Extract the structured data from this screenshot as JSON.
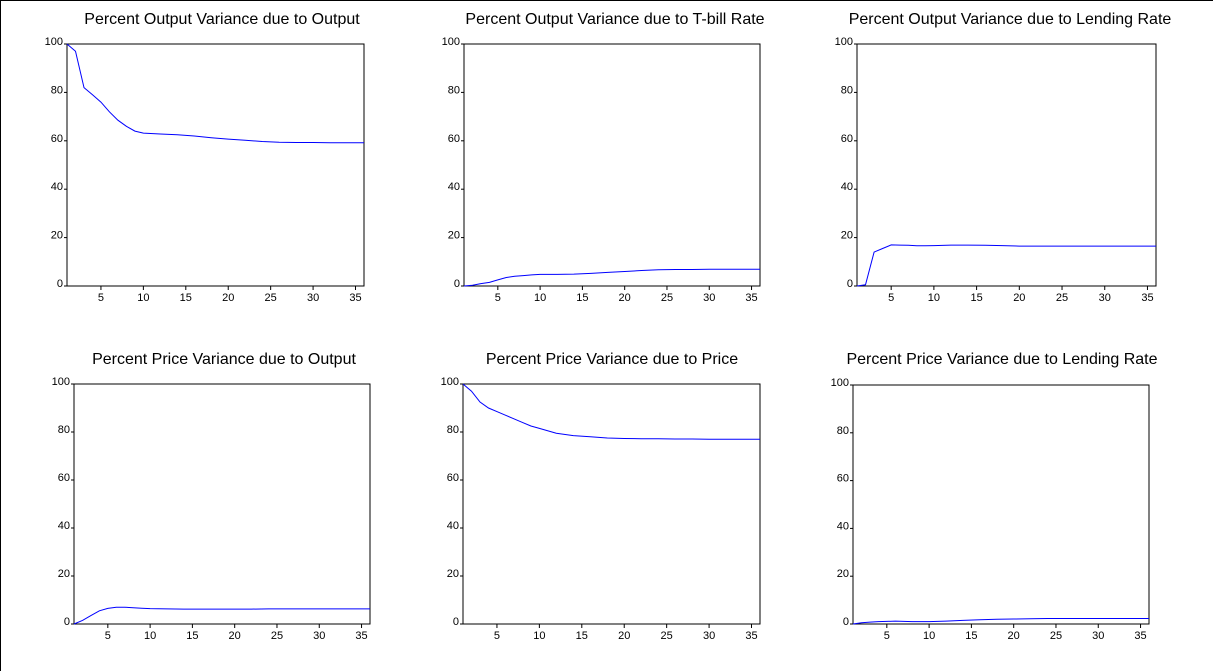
{
  "chart_data": [
    {
      "type": "line",
      "title": "Percent Output Variance due to Output",
      "xlim": [
        1,
        36
      ],
      "ylim": [
        0,
        100
      ],
      "xticks": [
        5,
        10,
        15,
        20,
        25,
        30,
        35
      ],
      "yticks": [
        0,
        20,
        40,
        60,
        80,
        100
      ],
      "series": [
        {
          "color": "#0000ff",
          "x": [
            1,
            2,
            3,
            4,
            5,
            6,
            7,
            8,
            9,
            10,
            12,
            14,
            16,
            18,
            20,
            22,
            24,
            26,
            28,
            30,
            32,
            34,
            36
          ],
          "y": [
            100,
            97,
            82,
            79,
            76,
            72,
            68.5,
            66,
            64,
            63.2,
            62.8,
            62.5,
            62,
            61.3,
            60.7,
            60.2,
            59.7,
            59.4,
            59.3,
            59.3,
            59.2,
            59.2,
            59.2
          ]
        }
      ]
    },
    {
      "type": "line",
      "title": "Percent Output Variance due to T-bill Rate",
      "xlim": [
        1,
        36
      ],
      "ylim": [
        0,
        100
      ],
      "xticks": [
        5,
        10,
        15,
        20,
        25,
        30,
        35
      ],
      "yticks": [
        0,
        20,
        40,
        60,
        80,
        100
      ],
      "series": [
        {
          "color": "#0000ff",
          "x": [
            1,
            2,
            3,
            4,
            5,
            6,
            7,
            8,
            9,
            10,
            12,
            14,
            16,
            18,
            20,
            22,
            24,
            26,
            28,
            30,
            32,
            34,
            36
          ],
          "y": [
            0,
            0.3,
            1,
            1.5,
            2.5,
            3.5,
            4,
            4.3,
            4.6,
            4.8,
            4.8,
            4.9,
            5.2,
            5.6,
            6,
            6.4,
            6.7,
            6.8,
            6.8,
            6.9,
            6.9,
            6.9,
            6.9
          ]
        }
      ]
    },
    {
      "type": "line",
      "title": "Percent Output Variance due to Lending Rate",
      "xlim": [
        1,
        36
      ],
      "ylim": [
        0,
        100
      ],
      "xticks": [
        5,
        10,
        15,
        20,
        25,
        30,
        35
      ],
      "yticks": [
        0,
        20,
        40,
        60,
        80,
        100
      ],
      "series": [
        {
          "color": "#0000ff",
          "x": [
            1,
            2,
            3,
            4,
            5,
            6,
            7,
            8,
            9,
            10,
            12,
            14,
            16,
            18,
            20,
            22,
            24,
            26,
            28,
            30,
            32,
            34,
            36
          ],
          "y": [
            0,
            0.5,
            14,
            15.5,
            17,
            16.9,
            16.8,
            16.6,
            16.6,
            16.7,
            16.9,
            16.9,
            16.8,
            16.7,
            16.5,
            16.5,
            16.5,
            16.5,
            16.5,
            16.5,
            16.5,
            16.5,
            16.5
          ]
        }
      ]
    },
    {
      "type": "line",
      "title": "Percent Price Variance due to Output",
      "xlim": [
        1,
        36
      ],
      "ylim": [
        0,
        100
      ],
      "xticks": [
        5,
        10,
        15,
        20,
        25,
        30,
        35
      ],
      "yticks": [
        0,
        20,
        40,
        60,
        80,
        100
      ],
      "series": [
        {
          "color": "#0000ff",
          "x": [
            1,
            2,
            3,
            4,
            5,
            6,
            7,
            8,
            9,
            10,
            12,
            14,
            16,
            18,
            20,
            22,
            24,
            26,
            28,
            30,
            32,
            34,
            36
          ],
          "y": [
            0,
            1.5,
            3.5,
            5.5,
            6.5,
            7,
            7,
            6.8,
            6.6,
            6.4,
            6.3,
            6.2,
            6.2,
            6.2,
            6.2,
            6.2,
            6.3,
            6.3,
            6.3,
            6.3,
            6.3,
            6.3,
            6.3
          ]
        }
      ]
    },
    {
      "type": "line",
      "title": "Percent Price Variance due to Price",
      "xlim": [
        1,
        36
      ],
      "ylim": [
        0,
        100
      ],
      "xticks": [
        5,
        10,
        15,
        20,
        25,
        30,
        35
      ],
      "yticks": [
        0,
        20,
        40,
        60,
        80,
        100
      ],
      "series": [
        {
          "color": "#0000ff",
          "x": [
            1,
            2,
            3,
            4,
            5,
            6,
            7,
            8,
            9,
            10,
            12,
            14,
            16,
            18,
            20,
            22,
            24,
            26,
            28,
            30,
            32,
            34,
            36
          ],
          "y": [
            100,
            97,
            92.5,
            90,
            88.5,
            87,
            85.5,
            84,
            82.5,
            81.5,
            79.5,
            78.5,
            78,
            77.5,
            77.3,
            77.2,
            77.2,
            77.1,
            77.1,
            77,
            77,
            77,
            77
          ]
        }
      ]
    },
    {
      "type": "line",
      "title": "Percent Price Variance due to Lending Rate",
      "xlim": [
        1,
        36
      ],
      "ylim": [
        0,
        100
      ],
      "xticks": [
        5,
        10,
        15,
        20,
        25,
        30,
        35
      ],
      "yticks": [
        0,
        20,
        40,
        60,
        80,
        100
      ],
      "series": [
        {
          "color": "#0000ff",
          "x": [
            1,
            2,
            3,
            4,
            5,
            6,
            7,
            8,
            9,
            10,
            12,
            14,
            16,
            18,
            20,
            22,
            24,
            26,
            28,
            30,
            32,
            34,
            36
          ],
          "y": [
            0,
            0.5,
            0.8,
            1,
            1.1,
            1.2,
            1.1,
            1,
            1,
            1,
            1.2,
            1.5,
            1.8,
            2,
            2.1,
            2.2,
            2.3,
            2.3,
            2.3,
            2.3,
            2.3,
            2.3,
            2.3
          ]
        }
      ]
    }
  ]
}
